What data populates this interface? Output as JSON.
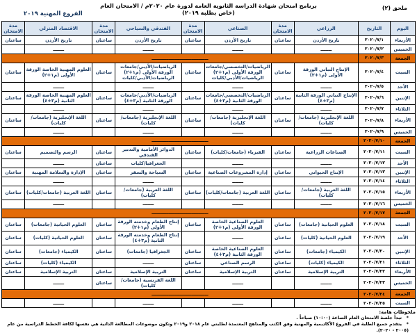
{
  "page": {
    "appendix_label": "ملحق (٢)",
    "title_line1": "برنامج امتحان شهادة الدراسة الثانوية العامة لدورة عام ٢٠٢٠م / الامتحان العام",
    "title_line2": "(خاص بطلبة ٢٠١٩)",
    "branch_label": "الفروع المهنية ٢٠١٩"
  },
  "colors": {
    "holiday_orange": "#E36C09",
    "header_bg": "#DCE6F1",
    "header_text": "#1F497D",
    "body_text": "#17365D"
  },
  "table": {
    "headers": [
      "اليوم",
      "التاريخ",
      "الزراعي",
      "مدة الامتحان",
      "الصناعي",
      "مدة الامتحان",
      "الفندقي والسياحي",
      "مدة الامتحان",
      "الاقتصاد المنزلي",
      "مدة الامتحان"
    ],
    "duration_value": "ساعتان",
    "dash": "ـــــــ",
    "holiday_dash": "ــــــــــــــــــــــــــــــــــ",
    "rows": [
      {
        "day": "الأربعاء",
        "date": "٢٠٢٠/٧/١",
        "type": "normal",
        "subjects": [
          "تاريخ الأردن",
          "تاريخ الأردن",
          "تاريخ الأردن",
          "تاريخ الأردن"
        ]
      },
      {
        "day": "الخميس",
        "date": "٢٠٢٠/٧/٢",
        "type": "normal",
        "subjects": [
          null,
          null,
          null,
          null
        ]
      },
      {
        "day": "الجمعة",
        "date": "٢٠٢٠/٧/٣",
        "type": "holiday"
      },
      {
        "day": "السبت",
        "date": "٢٠٢٠/٧/٤",
        "type": "normal",
        "subjects": [
          "الإنتاج النباتي الورقة الأولى (م١+٢)",
          "الرياضيات/التخصصي/جامعات الورقة الأولى (م١+٢)\nالرياضيات/الأدبي/كليات",
          "الرياضيات/الأدبي/جامعات الورقة الأولى (م١+٢)\nالرياضيات/الأدبي/كليات",
          "العلوم المهنية الخاصة الورقة الأولى (م١+٢)"
        ]
      },
      {
        "day": "الأحد",
        "date": "٢٠٢٠/٧/٥",
        "type": "normal",
        "subjects": [
          null,
          null,
          null,
          null
        ]
      },
      {
        "day": "الإثنين",
        "date": "٢٠٢٠/٧/٦",
        "type": "normal",
        "subjects": [
          "الإنتاج النباتي الورقة الثانية (م٣+٤)",
          "الرياضيات/التخصصي/جامعات الورقة الثانية (م٣+٤)",
          "الرياضيات/الأدبي/جامعات الورقة الثانية (م٣+٤)",
          "العلوم المهنية الخاصة الورقة الثانية (م٣+٤)"
        ]
      },
      {
        "day": "الثلاثاء",
        "date": "٢٠٢٠/٧/٧",
        "type": "normal",
        "subjects": [
          null,
          null,
          null,
          null
        ]
      },
      {
        "day": "الأربعاء",
        "date": "٢٠٢٠/٧/٨",
        "type": "normal",
        "subjects": [
          "اللغة الإنجليزية (جامعات/كليات)",
          "اللغة الإنجليزية (جامعات/كليات)",
          "اللغة الإنجليزية (جامعات/كليات)",
          "اللغة الإنجليزية (جامعات/كليات)"
        ]
      },
      {
        "day": "الخميس",
        "date": "٢٠٢٠/٧/٩",
        "type": "normal",
        "subjects": [
          null,
          null,
          null,
          null
        ]
      },
      {
        "day": "الجمعة",
        "date": "٢٠٢٠/٧/١٠",
        "type": "holiday"
      },
      {
        "day": "السبت",
        "date": "٢٠٢٠/٧/١١",
        "type": "normal",
        "subjects": [
          "الصناعات الزراعية",
          "الفيزياء (جامعات/كليات)",
          "الدوائر الأمامية والتدبير الفندقي",
          "الرسم والتصميم"
        ]
      },
      {
        "day": "الأحد",
        "date": "٢٠٢٠/٧/١٢",
        "type": "normal",
        "subjects": [
          null,
          null,
          "الجغرافيا/كليات",
          null
        ]
      },
      {
        "day": "الإثنين",
        "date": "٢٠٢٠/٧/١٣",
        "type": "normal",
        "subjects": [
          "الإنتاج الحيواني",
          "إدارة المشروعات الصناعية",
          "السياحة والسفر",
          "الإدارة والسلامة المهنية"
        ]
      },
      {
        "day": "الثلاثاء",
        "date": "٢٠٢٠/٧/١٤",
        "type": "normal",
        "subjects": [
          null,
          null,
          null,
          null
        ]
      },
      {
        "day": "الأربعاء",
        "date": "٢٠٢٠/٧/١٥",
        "type": "normal",
        "subjects": [
          "اللغة العربية (جامعات/كليات)",
          "اللغة العربية (جامعات/كليات)",
          "اللغة العربية (جامعات/كليات)",
          "اللغة العربية (جامعات/كليات)"
        ]
      },
      {
        "day": "الخميس",
        "date": "٢٠٢٠/٧/١٦",
        "type": "normal",
        "subjects": [
          null,
          null,
          null,
          null
        ]
      },
      {
        "day": "الجمعة",
        "date": "٢٠٢٠/٧/١٧",
        "type": "holiday"
      },
      {
        "day": "السبت",
        "date": "٢٠٢٠/٧/١٨",
        "type": "normal",
        "subjects": [
          "العلوم الحياتية (جامعات)",
          "العلوم الصناعية الخاصة الورقة الأولى (م١+٢)",
          "إنتاج الطعام وخدمته الورقة الأولى (م١+٢)",
          "العلوم الحياتية (جامعات)"
        ]
      },
      {
        "day": "الأحد",
        "date": "٢٠٢٠/٧/١٩",
        "type": "normal",
        "subjects": [
          "العلوم الحياتية (كليات)",
          null,
          "إنتاج الطعام وخدمته الورقة الثانية (م٣+٤)",
          "العلوم الحياتية (كليات)"
        ]
      },
      {
        "day": "الإثنين",
        "date": "٢٠٢٠/٧/٢٠",
        "type": "normal",
        "subjects": [
          "الكيمياء (جامعات)",
          "العلوم الصناعية الخاصة الورقة الثانية (م٣+٤)",
          "الجغرافيا (جامعات)",
          "الكيمياء (جامعات)"
        ]
      },
      {
        "day": "الثلاثاء",
        "date": "٢٠٢٠/٧/٢١",
        "type": "normal",
        "subjects": [
          "الكيمياء (كليات)",
          "الرسم الصناعي",
          null,
          "الكيمياء (كليات)"
        ]
      },
      {
        "day": "الأربعاء",
        "date": "٢٠٢٠/٧/٢٢",
        "type": "normal",
        "subjects": [
          "التربية الإسلامية",
          "التربية الإسلامية",
          "التربية الإسلامية",
          "التربية الإسلامية"
        ]
      },
      {
        "day": "الخميس",
        "date": "٢٠٢٠/٧/٢٣",
        "type": "normal",
        "subjects": [
          null,
          null,
          "اللغة الفرنسية (جامعات/كليات)",
          null
        ]
      },
      {
        "day": "الجمعة",
        "date": "٢٠٢٠/٧/٢٤",
        "type": "holiday"
      },
      {
        "day": "السبت",
        "date": "٢٠٢٠/٧/٢٥",
        "type": "normal",
        "subjects": [
          null,
          null,
          null,
          null
        ]
      }
    ]
  },
  "notes": {
    "heading": "ملحوظات هامة:",
    "bullet": "*",
    "items": [
      "تبدأ جلسة الامتحان العام الساعة (١٠:٠٠) صباحاً .",
      "يتقدم جميع الطلبة في الفروع الأكاديمية والمهنية وفق الكتب والمناهج المعتمدة لطلبتي عام ٢٠١٨ و٢٠١٩ وتكون موضوعات المطالعة الذاتية هي نفسها لكافة الخطط الدراسية من عام (٢٠٠٥ - ٢٠٢٠)."
    ]
  }
}
